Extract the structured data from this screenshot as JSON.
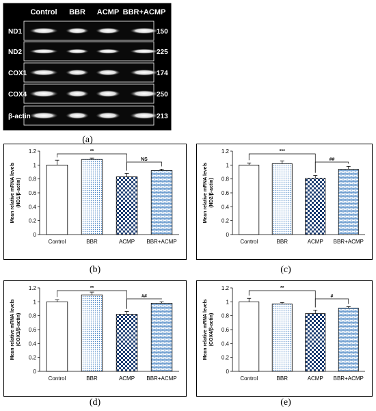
{
  "gel": {
    "lanes": [
      "Control",
      "BBR",
      "ACMP",
      "BBR+ACMP"
    ],
    "genes": [
      {
        "name": "ND1",
        "size": "150"
      },
      {
        "name": "ND2",
        "size": "225"
      },
      {
        "name": "COX1",
        "size": "174"
      },
      {
        "name": "COX4",
        "size": "250"
      },
      {
        "name": "β-actin",
        "size": "213"
      }
    ],
    "caption": "(a)"
  },
  "chart_data": [
    {
      "type": "bar",
      "panel_label": "(b)",
      "categories": [
        "Control",
        "BBR",
        "ACMP",
        "BBR+ACMP"
      ],
      "values": [
        1.0,
        1.08,
        0.83,
        0.92
      ],
      "errors": [
        0.07,
        0.02,
        0.05,
        0.02
      ],
      "ylabel": "Mean relative mRNA levels (ND1/β-actin)",
      "ylim": [
        0,
        1.2
      ],
      "yticks": [
        "0",
        "0.2",
        "0.4",
        "0.6",
        "0.8",
        "1",
        "1.2"
      ],
      "annotations": [
        {
          "from": 0,
          "to": 2,
          "text": "**"
        },
        {
          "from": 2,
          "to": 3,
          "text": "NS"
        }
      ]
    },
    {
      "type": "bar",
      "panel_label": "(c)",
      "categories": [
        "Control",
        "BBR",
        "ACMP",
        "BBR+ACMP"
      ],
      "values": [
        1.0,
        1.02,
        0.81,
        0.94
      ],
      "errors": [
        0.03,
        0.04,
        0.04,
        0.04
      ],
      "ylabel": "Mean relative mRNA levels (ND2/β-actin)",
      "ylim": [
        0,
        1.2
      ],
      "yticks": [
        "0",
        "0.2",
        "0.4",
        "0.6",
        "0.8",
        "1",
        "1.2"
      ],
      "annotations": [
        {
          "from": 0,
          "to": 2,
          "text": "***"
        },
        {
          "from": 2,
          "to": 3,
          "text": "##"
        }
      ]
    },
    {
      "type": "bar",
      "panel_label": "(d)",
      "categories": [
        "Control",
        "BBR",
        "ACMP",
        "BBR+ACMP"
      ],
      "values": [
        1.0,
        1.1,
        0.82,
        0.98
      ],
      "errors": [
        0.03,
        0.04,
        0.04,
        0.02
      ],
      "ylabel": "Mean relative mRNA levels (COX1/β-actin)",
      "ylim": [
        0,
        1.2
      ],
      "yticks": [
        "0",
        "0.2",
        "0.4",
        "0.6",
        "0.8",
        "1",
        "1.2"
      ],
      "annotations": [
        {
          "from": 0,
          "to": 2,
          "text": "**"
        },
        {
          "from": 2,
          "to": 3,
          "text": "##"
        }
      ]
    },
    {
      "type": "bar",
      "panel_label": "(e)",
      "categories": [
        "Control",
        "BBR",
        "ACMP",
        "BBR+ACMP"
      ],
      "values": [
        1.0,
        0.97,
        0.83,
        0.91
      ],
      "errors": [
        0.05,
        0.02,
        0.05,
        0.02
      ],
      "ylabel": "Mean relative mRNA levels (COX4/β-actin)",
      "ylim": [
        0,
        1.2
      ],
      "yticks": [
        "0",
        "0.2",
        "0.4",
        "0.6",
        "0.8",
        "1",
        "1.2"
      ],
      "annotations": [
        {
          "from": 0,
          "to": 2,
          "text": "**"
        },
        {
          "from": 2,
          "to": 3,
          "text": "#"
        }
      ]
    }
  ]
}
